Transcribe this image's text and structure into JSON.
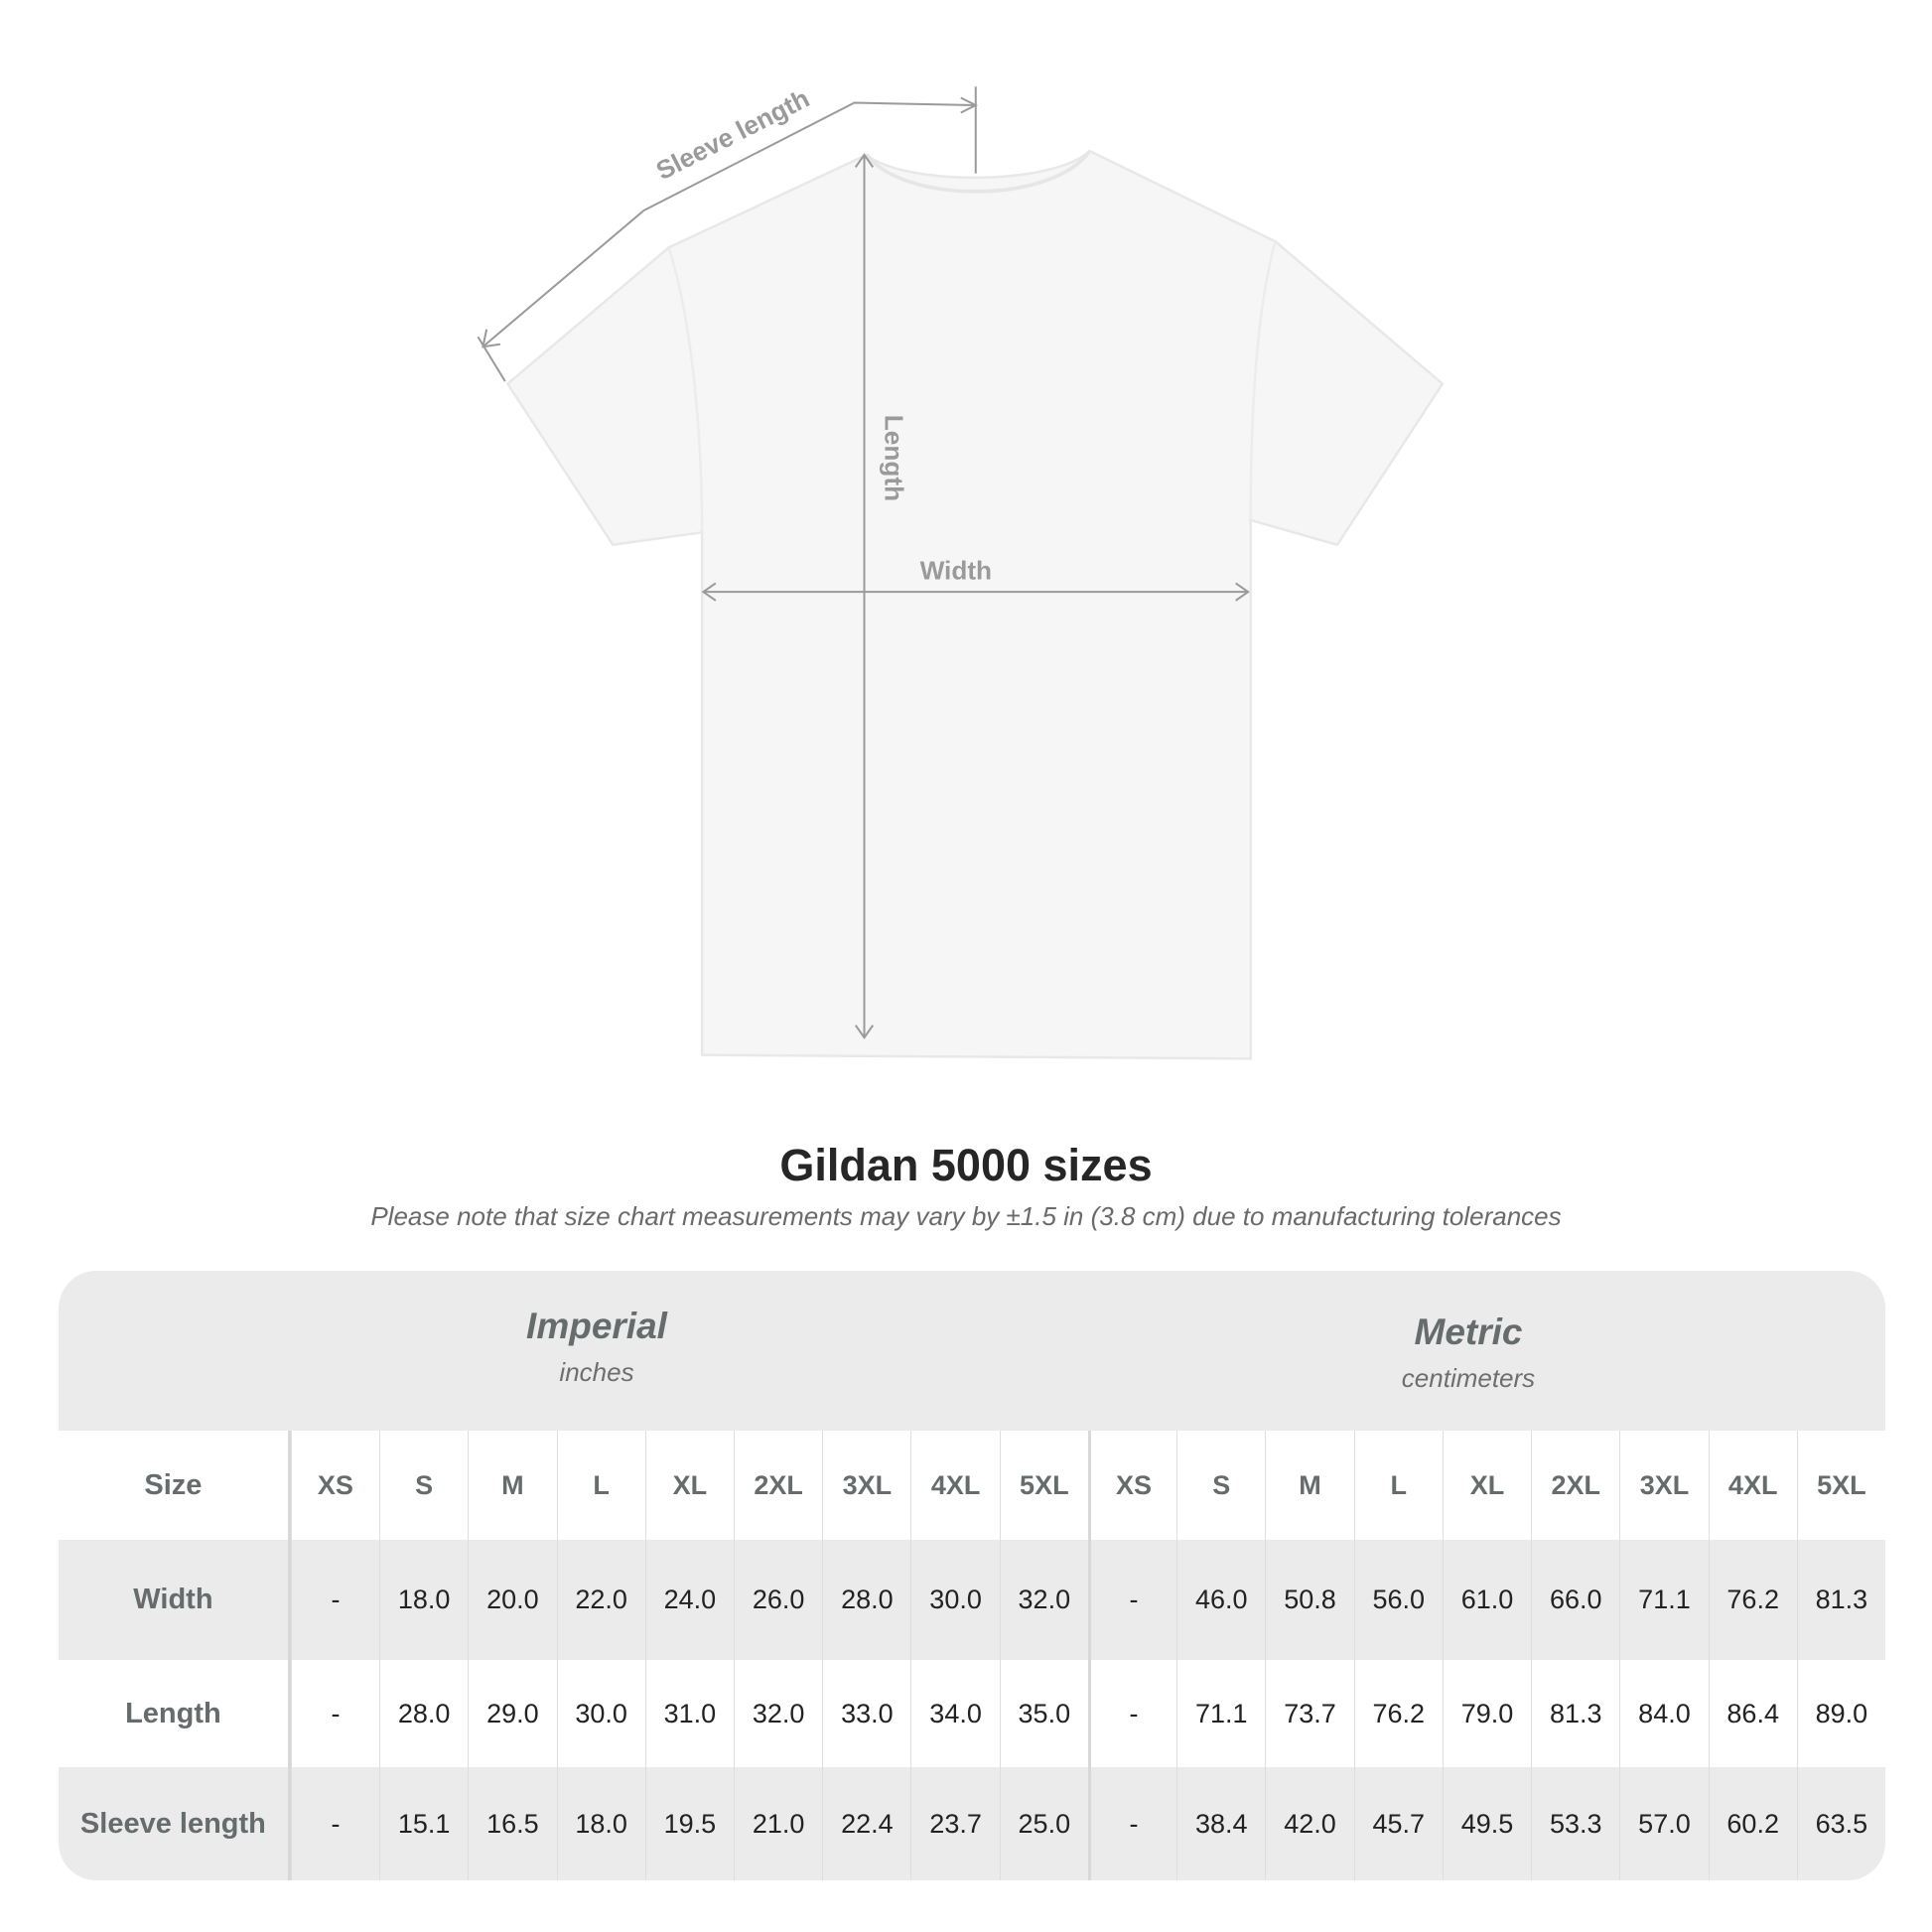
{
  "diagram": {
    "labels": {
      "sleeve": "Sleeve length",
      "length": "Length",
      "width": "Width"
    }
  },
  "title": "Gildan 5000 sizes",
  "note": "Please note that size chart measurements may vary by ±1.5 in (3.8 cm) due to manufacturing tolerances",
  "table": {
    "imperial": {
      "name": "Imperial",
      "unit": "inches"
    },
    "metric": {
      "name": "Metric",
      "unit": "centimeters"
    },
    "size_label": "Size",
    "sizes": [
      "XS",
      "S",
      "M",
      "L",
      "XL",
      "2XL",
      "3XL",
      "4XL",
      "5XL"
    ],
    "rows": [
      {
        "label": "Width",
        "imperial": [
          "-",
          "18.0",
          "20.0",
          "22.0",
          "24.0",
          "26.0",
          "28.0",
          "30.0",
          "32.0"
        ],
        "metric": [
          "-",
          "46.0",
          "50.8",
          "56.0",
          "61.0",
          "66.0",
          "71.1",
          "76.2",
          "81.3"
        ]
      },
      {
        "label": "Length",
        "imperial": [
          "-",
          "28.0",
          "29.0",
          "30.0",
          "31.0",
          "32.0",
          "33.0",
          "34.0",
          "35.0"
        ],
        "metric": [
          "-",
          "71.1",
          "73.7",
          "76.2",
          "79.0",
          "81.3",
          "84.0",
          "86.4",
          "89.0"
        ]
      },
      {
        "label": "Sleeve length",
        "imperial": [
          "-",
          "15.1",
          "16.5",
          "18.0",
          "19.5",
          "21.0",
          "22.4",
          "23.7",
          "25.0"
        ],
        "metric": [
          "-",
          "38.4",
          "42.0",
          "45.7",
          "49.5",
          "53.3",
          "57.0",
          "60.2",
          "63.5"
        ]
      }
    ]
  },
  "colors": {
    "band": "#ebebeb",
    "heading": "#666b6b",
    "measure_line": "#9a9a9a"
  }
}
